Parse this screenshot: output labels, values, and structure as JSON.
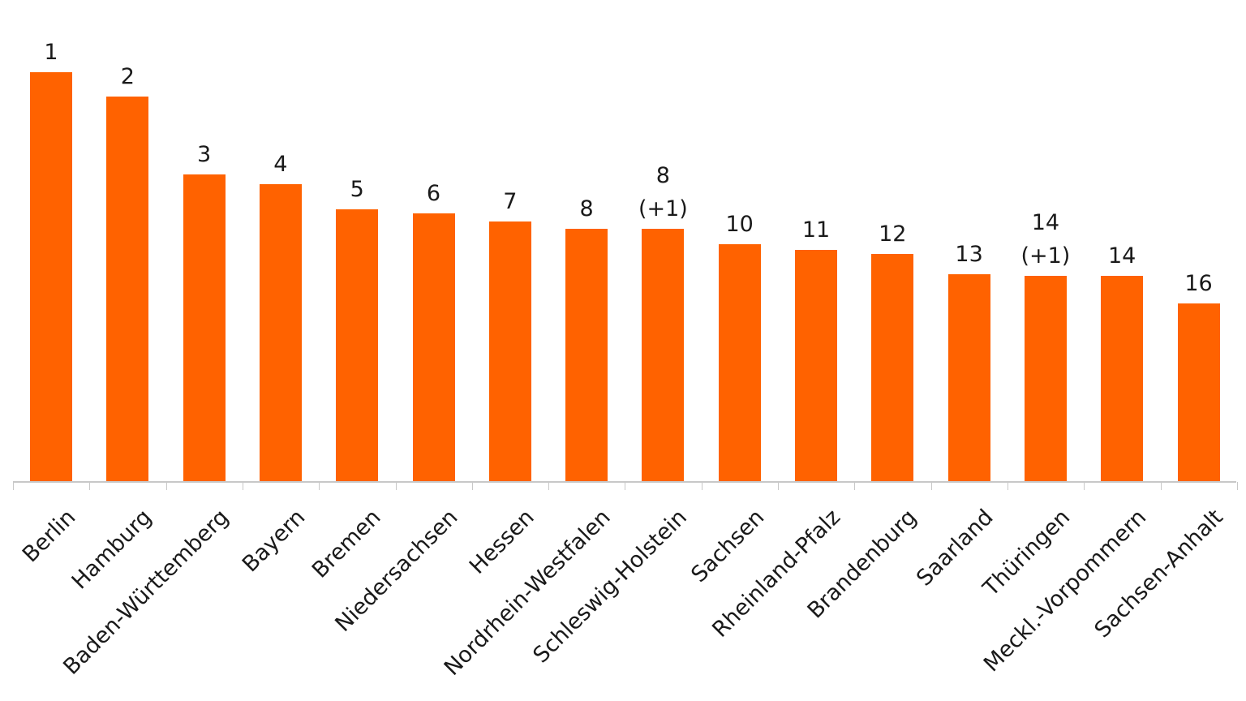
{
  "chart_data": {
    "type": "bar",
    "title": "",
    "xlabel": "",
    "ylabel": "",
    "grid": false,
    "legend": null,
    "y_axis_visible": false,
    "bar_color": "#FF6200",
    "categories": [
      "Berlin",
      "Hamburg",
      "Baden-Württemberg",
      "Bayern",
      "Bremen",
      "Niedersachsen",
      "Hessen",
      "Nordrhein-Westfalen",
      "Schleswig-Holstein",
      "Sachsen",
      "Rheinland-Pfalz",
      "Brandenburg",
      "Saarland",
      "Thüringen",
      "Meckl.-Vorpommern",
      "Sachsen-Anhalt"
    ],
    "values": [
      504,
      474,
      378,
      366,
      335,
      330,
      320,
      311,
      311,
      292,
      285,
      280,
      255,
      253,
      253,
      219
    ],
    "value_note": "relative bar heights (no y-axis shown)",
    "rank_labels": [
      [
        "1"
      ],
      [
        "2"
      ],
      [
        "3"
      ],
      [
        "4"
      ],
      [
        "5"
      ],
      [
        "6"
      ],
      [
        "7"
      ],
      [
        "8"
      ],
      [
        "8",
        "(+1)"
      ],
      [
        "10"
      ],
      [
        "11"
      ],
      [
        "12"
      ],
      [
        "13"
      ],
      [
        "14",
        "(+1)"
      ],
      [
        "14"
      ],
      [
        "16"
      ]
    ]
  }
}
